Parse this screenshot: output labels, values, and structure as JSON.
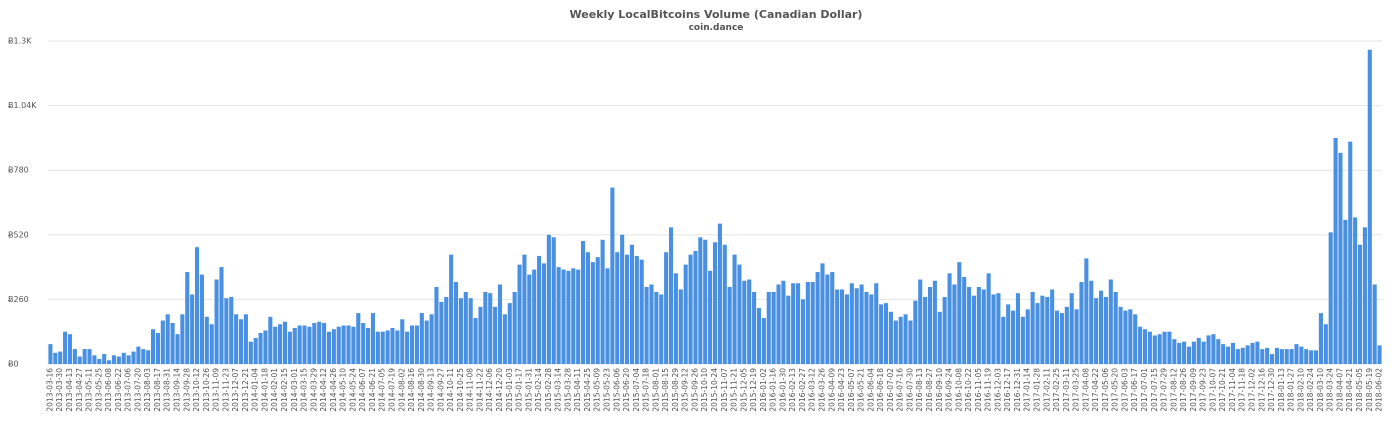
{
  "chart_data": {
    "type": "bar",
    "title": "Weekly LocalBitcoins Volume (Canadian Dollar)",
    "subtitle": "coin.dance",
    "categories": [
      "2013-03-16",
      null,
      "2013-03-30",
      null,
      "2013-04-13",
      null,
      "2013-04-27",
      null,
      "2013-05-11",
      null,
      "2013-05-25",
      null,
      "2013-06-08",
      null,
      "2013-06-22",
      null,
      "2013-07-06",
      null,
      "2013-07-20",
      null,
      "2013-08-03",
      null,
      "2013-08-17",
      null,
      "2013-08-31",
      null,
      "2013-09-14",
      null,
      "2013-09-28",
      null,
      "2013-10-12",
      null,
      "2013-10-26",
      null,
      "2013-11-09",
      null,
      "2013-11-23",
      null,
      "2013-12-07",
      null,
      "2013-12-21",
      null,
      "2014-01-04",
      null,
      "2014-01-18",
      null,
      "2014-02-01",
      null,
      "2014-02-15",
      null,
      "2014-03-01",
      null,
      "2014-03-15",
      null,
      "2014-03-29",
      null,
      "2014-04-12",
      null,
      "2014-04-26",
      null,
      "2014-05-10",
      null,
      "2014-05-24",
      null,
      "2014-06-07",
      null,
      "2014-06-21",
      null,
      "2014-07-05",
      null,
      "2014-07-19",
      null,
      "2014-08-02",
      null,
      "2014-08-16",
      null,
      "2014-08-30",
      null,
      "2014-09-13",
      null,
      "2014-09-27",
      null,
      "2014-10-11",
      null,
      "2014-10-25",
      null,
      "2014-11-08",
      null,
      "2014-11-22",
      null,
      "2014-12-06",
      null,
      "2014-12-20",
      null,
      "2015-01-03",
      null,
      "2015-01-17",
      null,
      "2015-01-31",
      null,
      "2015-02-14",
      null,
      "2015-02-28",
      null,
      "2015-03-14",
      null,
      "2015-03-28",
      null,
      "2015-04-11",
      null,
      "2015-04-25",
      null,
      "2015-05-09",
      null,
      "2015-05-23",
      null,
      "2015-06-06",
      null,
      "2015-06-20",
      null,
      "2015-07-04",
      null,
      "2015-07-18",
      null,
      "2015-08-01",
      null,
      "2015-08-15",
      null,
      "2015-08-29",
      null,
      "2015-09-12",
      null,
      "2015-09-26",
      null,
      "2015-10-10",
      null,
      "2015-10-24",
      null,
      "2015-11-07",
      null,
      "2015-11-21",
      null,
      "2015-12-05",
      null,
      "2015-12-19",
      null,
      "2016-01-02",
      null,
      "2016-01-16",
      null,
      "2016-01-30",
      null,
      "2016-02-13",
      null,
      "2016-02-27",
      null,
      "2016-03-12",
      null,
      "2016-03-26",
      null,
      "2016-04-09",
      null,
      "2016-04-23",
      null,
      "2016-05-07",
      null,
      "2016-05-21",
      null,
      "2016-06-04",
      null,
      "2016-06-18",
      null,
      "2016-07-02",
      null,
      "2016-07-16",
      null,
      "2016-07-30",
      null,
      "2016-08-13",
      null,
      "2016-08-27",
      null,
      "2016-09-10",
      null,
      "2016-09-24",
      null,
      "2016-10-08",
      null,
      "2016-10-22",
      null,
      "2016-11-05",
      null,
      "2016-11-19",
      null,
      "2016-12-03",
      null,
      "2016-12-17",
      null,
      "2016-12-31",
      null,
      "2017-01-14",
      null,
      "2017-01-28",
      null,
      "2017-02-11",
      null,
      "2017-02-25",
      null,
      "2017-03-11",
      null,
      "2017-03-25",
      null,
      "2017-04-08",
      null,
      "2017-04-22",
      null,
      "2017-05-06",
      null,
      "2017-05-20",
      null,
      "2017-06-03",
      null,
      "2017-06-17",
      null,
      "2017-07-01",
      null,
      "2017-07-15",
      null,
      "2017-07-29",
      null,
      "2017-08-12",
      null,
      "2017-08-26",
      null,
      "2017-09-09",
      null,
      "2017-09-23",
      null,
      "2017-10-07",
      null,
      "2017-10-21",
      null,
      "2017-11-04",
      null,
      "2017-11-18",
      null,
      "2017-12-02",
      null,
      "2017-12-16",
      null,
      "2017-12-30",
      null,
      "2018-01-13",
      null,
      "2018-01-27",
      null,
      "2018-02-10",
      null,
      "2018-02-24",
      null,
      "2018-03-10",
      null,
      "2018-03-24",
      null,
      "2018-04-07",
      null,
      "2018-04-21",
      null,
      "2018-05-05",
      null,
      "2018-05-19",
      null,
      "2018-06-02"
    ],
    "values": [
      80,
      45,
      50,
      130,
      120,
      60,
      30,
      60,
      60,
      35,
      20,
      40,
      15,
      35,
      30,
      45,
      35,
      50,
      70,
      60,
      55,
      140,
      125,
      175,
      200,
      165,
      120,
      200,
      370,
      280,
      470,
      360,
      190,
      160,
      340,
      390,
      265,
      270,
      200,
      180,
      200,
      90,
      105,
      125,
      135,
      190,
      150,
      160,
      170,
      130,
      145,
      155,
      155,
      150,
      165,
      170,
      165,
      130,
      140,
      150,
      155,
      155,
      150,
      205,
      165,
      145,
      205,
      130,
      130,
      135,
      145,
      135,
      180,
      130,
      155,
      155,
      205,
      175,
      200,
      310,
      250,
      270,
      440,
      330,
      265,
      290,
      265,
      185,
      230,
      290,
      285,
      230,
      320,
      200,
      245,
      290,
      400,
      440,
      360,
      380,
      435,
      405,
      520,
      510,
      390,
      380,
      375,
      385,
      380,
      495,
      450,
      410,
      430,
      500,
      385,
      710,
      450,
      520,
      440,
      480,
      435,
      420,
      310,
      320,
      290,
      280,
      450,
      550,
      365,
      300,
      400,
      440,
      455,
      510,
      500,
      375,
      490,
      565,
      480,
      310,
      440,
      400,
      335,
      340,
      290,
      225,
      185,
      290,
      290,
      320,
      335,
      275,
      325,
      325,
      260,
      330,
      330,
      370,
      405,
      360,
      370,
      300,
      300,
      280,
      325,
      305,
      320,
      290,
      280,
      325,
      240,
      245,
      210,
      175,
      190,
      200,
      175,
      255,
      340,
      270,
      310,
      335,
      210,
      270,
      365,
      320,
      410,
      350,
      310,
      275,
      310,
      300,
      365,
      280,
      285,
      190,
      240,
      215,
      285,
      190,
      220,
      290,
      245,
      275,
      270,
      300,
      215,
      205,
      230,
      285,
      220,
      330,
      425,
      335,
      265,
      295,
      270,
      340,
      290,
      230,
      215,
      220,
      200,
      150,
      140,
      130,
      115,
      120,
      130,
      130,
      100,
      85,
      90,
      70,
      90,
      105,
      90,
      115,
      120,
      100,
      80,
      70,
      85,
      60,
      65,
      75,
      85,
      90,
      60,
      65,
      40,
      65,
      60,
      60,
      60,
      80,
      70,
      60,
      55,
      55,
      205,
      160,
      530,
      910,
      850,
      580,
      895,
      590,
      480,
      550,
      1265,
      320,
      75
    ],
    "color": "#4a90e2",
    "ylim": [
      0,
      1300
    ],
    "yticks": [
      {
        "value": 0,
        "label": "Ƀ0"
      },
      {
        "value": 260,
        "label": "Ƀ260"
      },
      {
        "value": 520,
        "label": "Ƀ520"
      },
      {
        "value": 780,
        "label": "Ƀ780"
      },
      {
        "value": 1040,
        "label": "Ƀ1.04K"
      },
      {
        "value": 1300,
        "label": "Ƀ1.3K"
      }
    ],
    "grid": true
  }
}
